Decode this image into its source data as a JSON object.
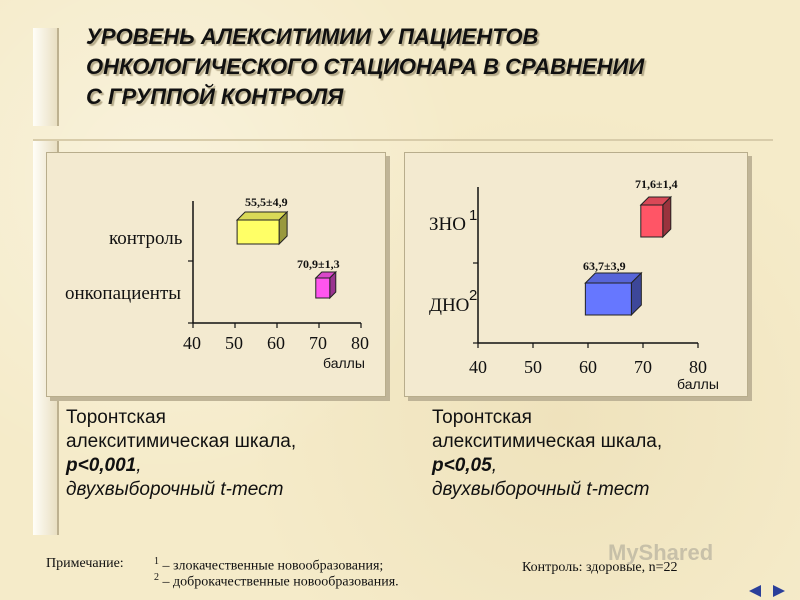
{
  "title_lines": [
    "УРОВЕНЬ АЛЕКСИТИМИИ У ПАЦИЕНТОВ",
    "ОНКОЛОГИЧЕСКОГО СТАЦИОНАРА В СРАВНЕНИИ",
    "С ГРУППОЙ КОНТРОЛЯ"
  ],
  "chart_data": [
    {
      "type": "bar",
      "orientation": "horizontal",
      "categories": [
        "контроль",
        "онкопациенты"
      ],
      "values": [
        55.5,
        70.9
      ],
      "value_labels": [
        "55,5±4,9",
        "70,9±1,3"
      ],
      "xlim": [
        40,
        80
      ],
      "ticks": [
        "40",
        "50",
        "60",
        "70",
        "80"
      ],
      "xlabel": "баллы",
      "colors": [
        "#ffff66",
        "#ff55ee"
      ]
    },
    {
      "type": "bar",
      "orientation": "horizontal",
      "categories": [
        "ЗНО",
        "ДНО"
      ],
      "superscripts": [
        "1",
        "2"
      ],
      "values": [
        71.6,
        63.7
      ],
      "value_labels": [
        "71,6±1,4",
        "63,7±3,9"
      ],
      "xlim": [
        40,
        80
      ],
      "ticks": [
        "40",
        "50",
        "60",
        "70",
        "80"
      ],
      "xlabel": "баллы",
      "colors": [
        "#ff5566",
        "#6677ff"
      ]
    }
  ],
  "captions": [
    {
      "line1": "Торонтская",
      "line2": "алекситимическая шкала,",
      "line3": "p<0,001",
      "line3_suffix": ",",
      "line4": "двухвыборочный t-тест"
    },
    {
      "line1": "Торонтская",
      "line2": "алекситимическая шкала,",
      "line3": "p<0,05",
      "line3_suffix": ",",
      "line4": "двухвыборочный t-тест"
    }
  ],
  "note": {
    "label": "Примечание:",
    "sup1": "1",
    "line1": " – злокачественные новообразования;",
    "sup2": "2",
    "line2": " – доброкачественные новообразования."
  },
  "control_note": "Контроль: здоровые, n=22",
  "watermark": "MyShared",
  "nav": {
    "prev_icon": "arrow-left-icon",
    "next_icon": "arrow-right-icon"
  }
}
